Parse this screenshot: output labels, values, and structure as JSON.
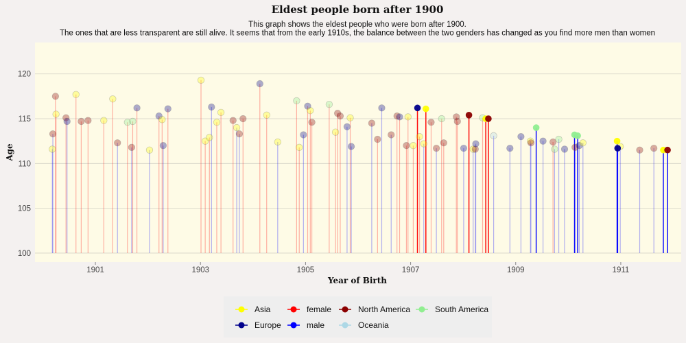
{
  "chart_data": {
    "type": "scatter",
    "subtype": "lollipop",
    "title": "Eldest people born after 1900",
    "subtitle": [
      "This graph shows the eldest people who were born after 1900.",
      "The ones that are less transparent are still alive. It seems that from the early 1910s, the balance between the two genders has changed as you find more men than women"
    ],
    "xlabel": "Year of Birth",
    "ylabel": "Age",
    "xlim": [
      1899.85,
      1912.15
    ],
    "ylim": [
      99,
      123.5
    ],
    "baseline": 100,
    "x_ticks": [
      1901,
      1903,
      1905,
      1907,
      1909,
      1911
    ],
    "y_ticks": [
      100,
      105,
      110,
      115,
      120
    ],
    "grid": true,
    "legend_position": "bottom",
    "legend": [
      {
        "label": "Asia",
        "color": "#ffff00"
      },
      {
        "label": "Europe",
        "color": "#00008b"
      },
      {
        "label": "female",
        "color": "#ff0000"
      },
      {
        "label": "male",
        "color": "#0000ff"
      },
      {
        "label": "North America",
        "color": "#8b0000"
      },
      {
        "label": "Oceania",
        "color": "#add8e6"
      },
      {
        "label": "South America",
        "color": "#90ee90"
      }
    ],
    "continent_colors": {
      "Asia": "#ffff00",
      "Europe": "#00008b",
      "North America": "#8b0000",
      "Oceania": "#add8e6",
      "South America": "#90ee90"
    },
    "gender_colors": {
      "female": "#ff0000",
      "male": "#0000ff"
    },
    "points": [
      {
        "x": 1900.18,
        "y": 111.6,
        "continent": "Asia",
        "gender": "male",
        "alive": false
      },
      {
        "x": 1900.19,
        "y": 113.3,
        "continent": "North America",
        "gender": "male",
        "alive": false
      },
      {
        "x": 1900.24,
        "y": 117.5,
        "continent": "North America",
        "gender": "female",
        "alive": false
      },
      {
        "x": 1900.25,
        "y": 115.5,
        "continent": "Asia",
        "gender": "female",
        "alive": false
      },
      {
        "x": 1900.44,
        "y": 115.1,
        "continent": "North America",
        "gender": "female",
        "alive": false
      },
      {
        "x": 1900.46,
        "y": 114.7,
        "continent": "Europe",
        "gender": "male",
        "alive": false
      },
      {
        "x": 1900.63,
        "y": 117.7,
        "continent": "Asia",
        "gender": "female",
        "alive": false
      },
      {
        "x": 1900.73,
        "y": 114.7,
        "continent": "North America",
        "gender": "female",
        "alive": false
      },
      {
        "x": 1900.86,
        "y": 114.8,
        "continent": "North America",
        "gender": "female",
        "alive": false
      },
      {
        "x": 1901.16,
        "y": 114.8,
        "continent": "Asia",
        "gender": "female",
        "alive": false
      },
      {
        "x": 1901.33,
        "y": 117.2,
        "continent": "Asia",
        "gender": "female",
        "alive": false
      },
      {
        "x": 1901.42,
        "y": 112.3,
        "continent": "North America",
        "gender": "male",
        "alive": false
      },
      {
        "x": 1901.61,
        "y": 114.6,
        "continent": "South America",
        "gender": "female",
        "alive": false
      },
      {
        "x": 1901.69,
        "y": 111.8,
        "continent": "North America",
        "gender": "male",
        "alive": false
      },
      {
        "x": 1901.71,
        "y": 114.7,
        "continent": "South America",
        "gender": "female",
        "alive": false
      },
      {
        "x": 1901.79,
        "y": 116.2,
        "continent": "Europe",
        "gender": "female",
        "alive": false
      },
      {
        "x": 1902.03,
        "y": 111.5,
        "continent": "Asia",
        "gender": "male",
        "alive": false
      },
      {
        "x": 1902.21,
        "y": 115.3,
        "continent": "Europe",
        "gender": "female",
        "alive": false
      },
      {
        "x": 1902.27,
        "y": 114.9,
        "continent": "Asia",
        "gender": "female",
        "alive": false
      },
      {
        "x": 1902.29,
        "y": 112.0,
        "continent": "Europe",
        "gender": "male",
        "alive": false
      },
      {
        "x": 1902.38,
        "y": 116.1,
        "continent": "Europe",
        "gender": "female",
        "alive": false
      },
      {
        "x": 1903.01,
        "y": 119.3,
        "continent": "Asia",
        "gender": "female",
        "alive": false
      },
      {
        "x": 1903.09,
        "y": 112.5,
        "continent": "Asia",
        "gender": "female",
        "alive": false
      },
      {
        "x": 1903.17,
        "y": 112.9,
        "continent": "Asia",
        "gender": "female",
        "alive": false
      },
      {
        "x": 1903.21,
        "y": 116.3,
        "continent": "Europe",
        "gender": "male",
        "alive": false
      },
      {
        "x": 1903.31,
        "y": 114.6,
        "continent": "Asia",
        "gender": "female",
        "alive": false
      },
      {
        "x": 1903.39,
        "y": 115.7,
        "continent": "Asia",
        "gender": "female",
        "alive": false
      },
      {
        "x": 1903.62,
        "y": 114.8,
        "continent": "North America",
        "gender": "female",
        "alive": false
      },
      {
        "x": 1903.69,
        "y": 114.0,
        "continent": "Asia",
        "gender": "male",
        "alive": false
      },
      {
        "x": 1903.74,
        "y": 113.3,
        "continent": "North America",
        "gender": "male",
        "alive": false
      },
      {
        "x": 1903.81,
        "y": 115.0,
        "continent": "North America",
        "gender": "female",
        "alive": false
      },
      {
        "x": 1904.13,
        "y": 118.9,
        "continent": "Europe",
        "gender": "female",
        "alive": false
      },
      {
        "x": 1904.26,
        "y": 115.4,
        "continent": "Asia",
        "gender": "female",
        "alive": false
      },
      {
        "x": 1904.47,
        "y": 112.4,
        "continent": "Asia",
        "gender": "male",
        "alive": false
      },
      {
        "x": 1904.83,
        "y": 117.0,
        "continent": "South America",
        "gender": "female",
        "alive": false
      },
      {
        "x": 1904.88,
        "y": 111.8,
        "continent": "Asia",
        "gender": "female",
        "alive": false
      },
      {
        "x": 1904.96,
        "y": 113.2,
        "continent": "Europe",
        "gender": "male",
        "alive": false
      },
      {
        "x": 1905.04,
        "y": 116.4,
        "continent": "Europe",
        "gender": "female",
        "alive": false
      },
      {
        "x": 1905.09,
        "y": 115.9,
        "continent": "Asia",
        "gender": "female",
        "alive": false
      },
      {
        "x": 1905.12,
        "y": 114.6,
        "continent": "North America",
        "gender": "female",
        "alive": false
      },
      {
        "x": 1905.45,
        "y": 116.6,
        "continent": "South America",
        "gender": "female",
        "alive": false
      },
      {
        "x": 1905.57,
        "y": 113.5,
        "continent": "Asia",
        "gender": "female",
        "alive": false
      },
      {
        "x": 1905.61,
        "y": 115.6,
        "continent": "North America",
        "gender": "female",
        "alive": false
      },
      {
        "x": 1905.66,
        "y": 115.3,
        "continent": "North America",
        "gender": "female",
        "alive": false
      },
      {
        "x": 1905.79,
        "y": 114.1,
        "continent": "Europe",
        "gender": "male",
        "alive": false
      },
      {
        "x": 1905.85,
        "y": 115.1,
        "continent": "Asia",
        "gender": "female",
        "alive": false
      },
      {
        "x": 1905.87,
        "y": 111.9,
        "continent": "Europe",
        "gender": "male",
        "alive": false
      },
      {
        "x": 1906.26,
        "y": 114.5,
        "continent": "North America",
        "gender": "male",
        "alive": false
      },
      {
        "x": 1906.37,
        "y": 112.7,
        "continent": "North America",
        "gender": "female",
        "alive": false
      },
      {
        "x": 1906.45,
        "y": 116.2,
        "continent": "Europe",
        "gender": "male",
        "alive": false
      },
      {
        "x": 1906.63,
        "y": 113.2,
        "continent": "North America",
        "gender": "male",
        "alive": false
      },
      {
        "x": 1906.74,
        "y": 115.3,
        "continent": "North America",
        "gender": "female",
        "alive": false
      },
      {
        "x": 1906.79,
        "y": 115.2,
        "continent": "Europe",
        "gender": "female",
        "alive": false
      },
      {
        "x": 1906.92,
        "y": 112.0,
        "continent": "North America",
        "gender": "female",
        "alive": false
      },
      {
        "x": 1906.95,
        "y": 115.2,
        "continent": "Asia",
        "gender": "female",
        "alive": false
      },
      {
        "x": 1907.05,
        "y": 112.0,
        "continent": "Asia",
        "gender": "female",
        "alive": false
      },
      {
        "x": 1907.13,
        "y": 116.2,
        "continent": "Europe",
        "gender": "female",
        "alive": true
      },
      {
        "x": 1907.17,
        "y": 113.0,
        "continent": "Asia",
        "gender": "female",
        "alive": false
      },
      {
        "x": 1907.25,
        "y": 112.2,
        "continent": "Asia",
        "gender": "male",
        "alive": false
      },
      {
        "x": 1907.29,
        "y": 116.1,
        "continent": "Asia",
        "gender": "female",
        "alive": true
      },
      {
        "x": 1907.39,
        "y": 114.6,
        "continent": "North America",
        "gender": "female",
        "alive": false
      },
      {
        "x": 1907.49,
        "y": 111.7,
        "continent": "North America",
        "gender": "male",
        "alive": false
      },
      {
        "x": 1907.59,
        "y": 115.0,
        "continent": "South America",
        "gender": "female",
        "alive": false
      },
      {
        "x": 1907.63,
        "y": 112.3,
        "continent": "North America",
        "gender": "female",
        "alive": false
      },
      {
        "x": 1907.87,
        "y": 115.2,
        "continent": "North America",
        "gender": "female",
        "alive": false
      },
      {
        "x": 1907.89,
        "y": 114.7,
        "continent": "North America",
        "gender": "female",
        "alive": false
      },
      {
        "x": 1908.01,
        "y": 111.7,
        "continent": "Europe",
        "gender": "male",
        "alive": false
      },
      {
        "x": 1908.11,
        "y": 115.4,
        "continent": "North America",
        "gender": "female",
        "alive": true
      },
      {
        "x": 1908.19,
        "y": 111.6,
        "continent": "Asia",
        "gender": "male",
        "alive": false
      },
      {
        "x": 1908.23,
        "y": 111.6,
        "continent": "North America",
        "gender": "male",
        "alive": false
      },
      {
        "x": 1908.24,
        "y": 112.2,
        "continent": "Europe",
        "gender": "male",
        "alive": false
      },
      {
        "x": 1908.37,
        "y": 115.1,
        "continent": "South America",
        "gender": "female",
        "alive": false
      },
      {
        "x": 1908.43,
        "y": 115.0,
        "continent": "Asia",
        "gender": "female",
        "alive": true
      },
      {
        "x": 1908.48,
        "y": 115.0,
        "continent": "North America",
        "gender": "female",
        "alive": true
      },
      {
        "x": 1908.58,
        "y": 113.1,
        "continent": "Oceania",
        "gender": "male",
        "alive": false
      },
      {
        "x": 1908.89,
        "y": 111.7,
        "continent": "Europe",
        "gender": "male",
        "alive": false
      },
      {
        "x": 1909.1,
        "y": 113.0,
        "continent": "Europe",
        "gender": "male",
        "alive": false
      },
      {
        "x": 1909.28,
        "y": 112.5,
        "continent": "Asia",
        "gender": "male",
        "alive": false
      },
      {
        "x": 1909.29,
        "y": 112.3,
        "continent": "North America",
        "gender": "male",
        "alive": false
      },
      {
        "x": 1909.39,
        "y": 114.0,
        "continent": "South America",
        "gender": "male",
        "alive": true
      },
      {
        "x": 1909.52,
        "y": 112.5,
        "continent": "Europe",
        "gender": "male",
        "alive": false
      },
      {
        "x": 1909.71,
        "y": 112.4,
        "continent": "North America",
        "gender": "female",
        "alive": false
      },
      {
        "x": 1909.74,
        "y": 111.6,
        "continent": "South America",
        "gender": "male",
        "alive": false
      },
      {
        "x": 1909.82,
        "y": 112.7,
        "continent": "South America",
        "gender": "male",
        "alive": false
      },
      {
        "x": 1909.93,
        "y": 111.6,
        "continent": "Europe",
        "gender": "male",
        "alive": false
      },
      {
        "x": 1910.12,
        "y": 113.2,
        "continent": "South America",
        "gender": "male",
        "alive": true
      },
      {
        "x": 1910.13,
        "y": 111.8,
        "continent": "North America",
        "gender": "male",
        "alive": false
      },
      {
        "x": 1910.18,
        "y": 113.1,
        "continent": "South America",
        "gender": "male",
        "alive": true
      },
      {
        "x": 1910.21,
        "y": 112.0,
        "continent": "Europe",
        "gender": "male",
        "alive": false
      },
      {
        "x": 1910.28,
        "y": 112.3,
        "continent": "Asia",
        "gender": "male",
        "alive": false
      },
      {
        "x": 1910.93,
        "y": 112.5,
        "continent": "Asia",
        "gender": "male",
        "alive": true
      },
      {
        "x": 1910.94,
        "y": 111.7,
        "continent": "Europe",
        "gender": "male",
        "alive": true
      },
      {
        "x": 1910.99,
        "y": 111.9,
        "continent": "Asia",
        "gender": "male",
        "alive": false
      },
      {
        "x": 1911.36,
        "y": 111.5,
        "continent": "North America",
        "gender": "male",
        "alive": false
      },
      {
        "x": 1911.63,
        "y": 111.7,
        "continent": "North America",
        "gender": "male",
        "alive": false
      },
      {
        "x": 1911.81,
        "y": 111.5,
        "continent": "Asia",
        "gender": "male",
        "alive": true
      },
      {
        "x": 1911.89,
        "y": 111.5,
        "continent": "North America",
        "gender": "male",
        "alive": true
      }
    ]
  }
}
